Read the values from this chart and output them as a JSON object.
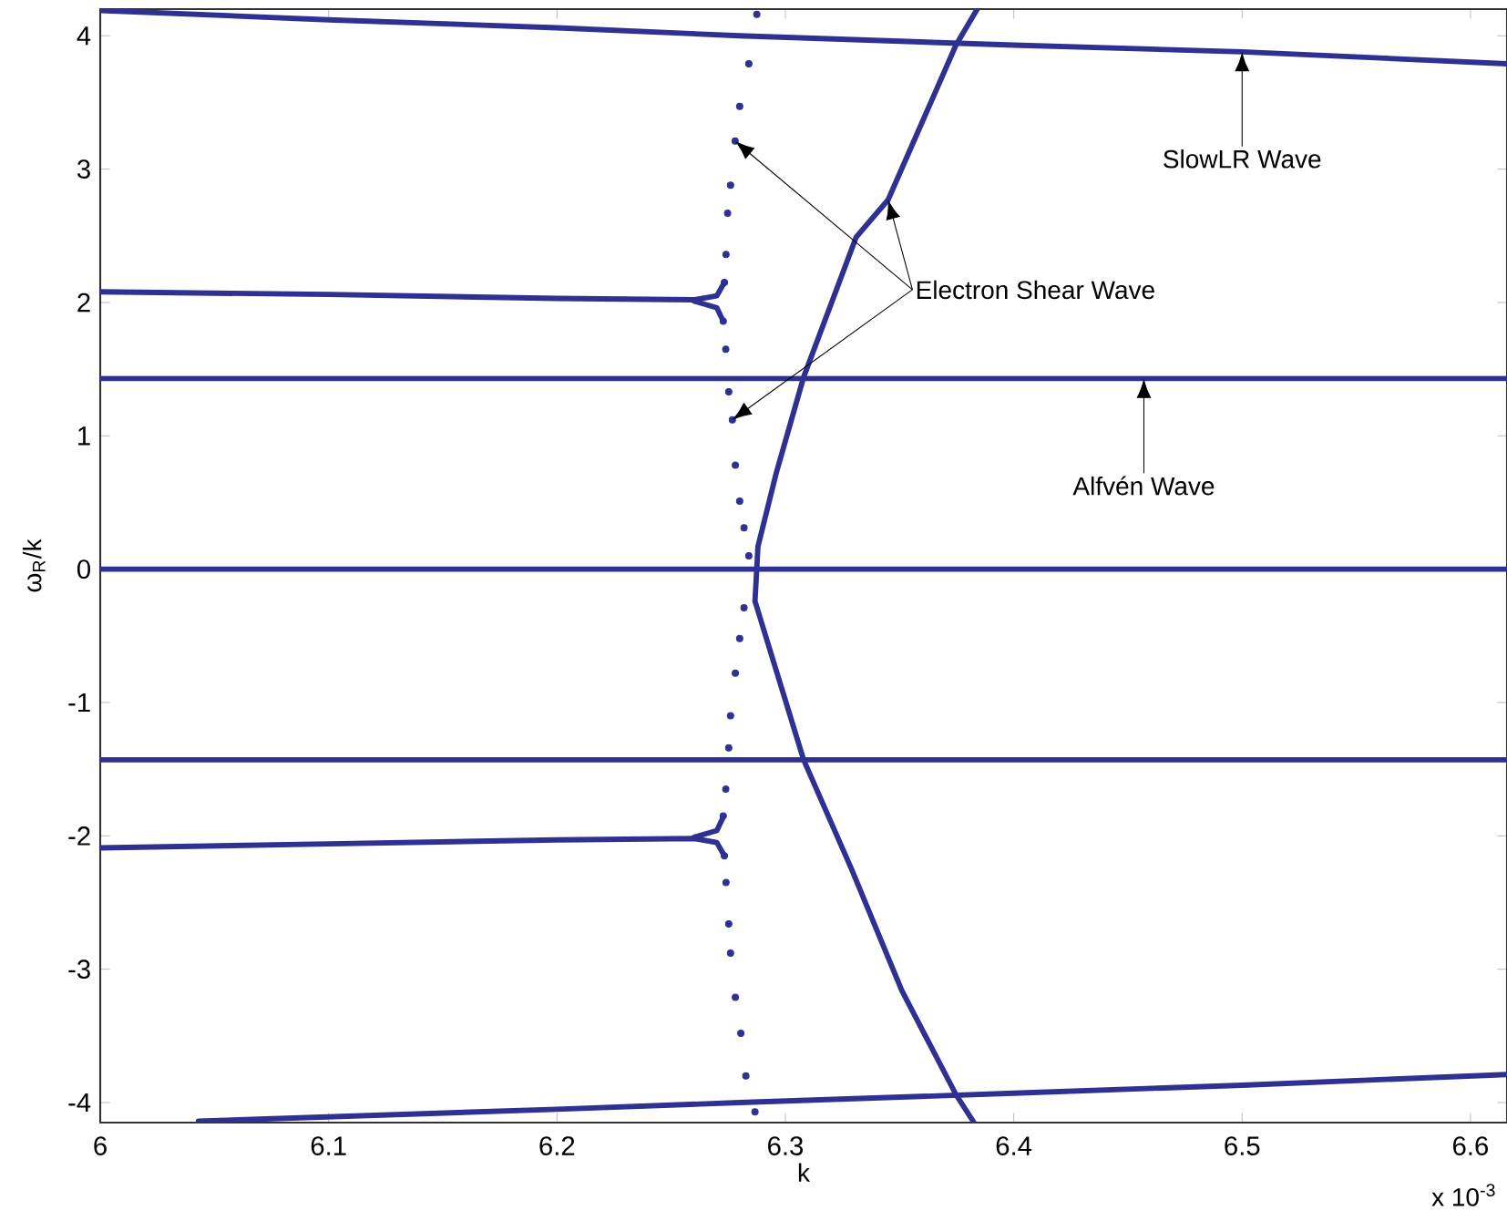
{
  "chart_data": {
    "type": "line",
    "xlabel": "k",
    "ylabel": "ω$_{R}$/k",
    "xlim": [
      6,
      6.616
    ],
    "ylim": [
      -4.15,
      4.2
    ],
    "xticks": [
      6,
      6.1,
      6.2,
      6.3,
      6.4,
      6.5,
      6.6
    ],
    "yticks": [
      -4,
      -3,
      -2,
      -1,
      0,
      1,
      2,
      3,
      4
    ],
    "grid": false,
    "line_style": "solid",
    "series": [
      {
        "color": "#2e3192",
        "x": [
          6,
          6.1,
          6.2,
          6.28,
          6.4,
          6.5,
          6.616
        ],
        "values": [
          4.19,
          4.12,
          4.06,
          4.0,
          3.93,
          3.88,
          3.79
        ]
      },
      {
        "color": "#2e3192",
        "x": [
          6.043,
          6.2,
          6.28,
          6.4,
          6.5,
          6.616
        ],
        "values": [
          -4.14,
          -4.05,
          -4.0,
          -3.93,
          -3.87,
          -3.79
        ]
      },
      {
        "color": "#2e3192",
        "x": [
          6,
          6.457,
          6.616
        ],
        "values": [
          1.43,
          1.43,
          1.43
        ]
      },
      {
        "color": "#2e3192",
        "x": [
          6,
          6.616
        ],
        "values": [
          0,
          0
        ]
      },
      {
        "color": "#2e3192",
        "x": [
          6,
          6.616
        ],
        "values": [
          -1.43,
          -1.43
        ]
      },
      {
        "color": "#2e3192",
        "x": [
          6,
          6.1,
          6.2,
          6.26,
          6.27,
          6.2733
        ],
        "values": [
          2.08,
          2.06,
          2.03,
          2.02,
          2.05,
          2.15
        ]
      },
      {
        "color": "#2e3192",
        "x": [
          6.26,
          6.27,
          6.2728
        ],
        "values": [
          2.01,
          1.96,
          1.86
        ]
      },
      {
        "color": "#2e3192",
        "x": [
          6,
          6.1,
          6.2,
          6.26,
          6.27,
          6.2733
        ],
        "values": [
          -2.09,
          -2.06,
          -2.03,
          -2.02,
          -2.05,
          -2.15
        ]
      },
      {
        "color": "#2e3192",
        "x": [
          6.26,
          6.27,
          6.2728
        ],
        "values": [
          -2.01,
          -1.96,
          -1.86
        ]
      },
      {
        "color": "#2e3192",
        "x": [
          6.384,
          6.3747,
          6.345,
          6.331,
          6.308,
          6.296,
          6.288,
          6.2867,
          6.308,
          6.329,
          6.351,
          6.3747,
          6.3826
        ],
        "values": [
          4.2,
          3.93,
          2.77,
          2.49,
          1.44,
          0.72,
          0.17,
          -0.24,
          -1.43,
          -2.25,
          -3.16,
          -3.94,
          -4.15
        ]
      },
      {
        "type": "scatter",
        "marker": "circle",
        "color": "#2e3192",
        "x": [
          6.2875,
          6.284,
          6.28,
          6.278,
          6.276,
          6.2747,
          6.274,
          6.2733,
          6.2728,
          6.2739,
          6.2752,
          6.2768,
          6.2781,
          6.28,
          6.2819,
          6.284,
          6.2819,
          6.28,
          6.2781,
          6.276,
          6.2752,
          6.2739,
          6.2728,
          6.2733,
          6.274,
          6.2752,
          6.276,
          6.2781,
          6.2805,
          6.2827,
          6.2867
        ],
        "values": [
          4.16,
          3.79,
          3.47,
          3.21,
          2.88,
          2.67,
          2.36,
          2.15,
          1.86,
          1.65,
          1.33,
          1.12,
          0.78,
          0.51,
          0.31,
          0.1,
          -0.29,
          -0.52,
          -0.78,
          -1.1,
          -1.34,
          -1.65,
          -1.85,
          -2.15,
          -2.35,
          -2.66,
          -2.88,
          -3.21,
          -3.48,
          -3.8,
          -4.07
        ]
      }
    ],
    "annotations": [
      "SlowLR Wave",
      "Electron Shear Wave",
      "Alfvén Wave",
      "x 10$^{-3}$"
    ]
  }
}
